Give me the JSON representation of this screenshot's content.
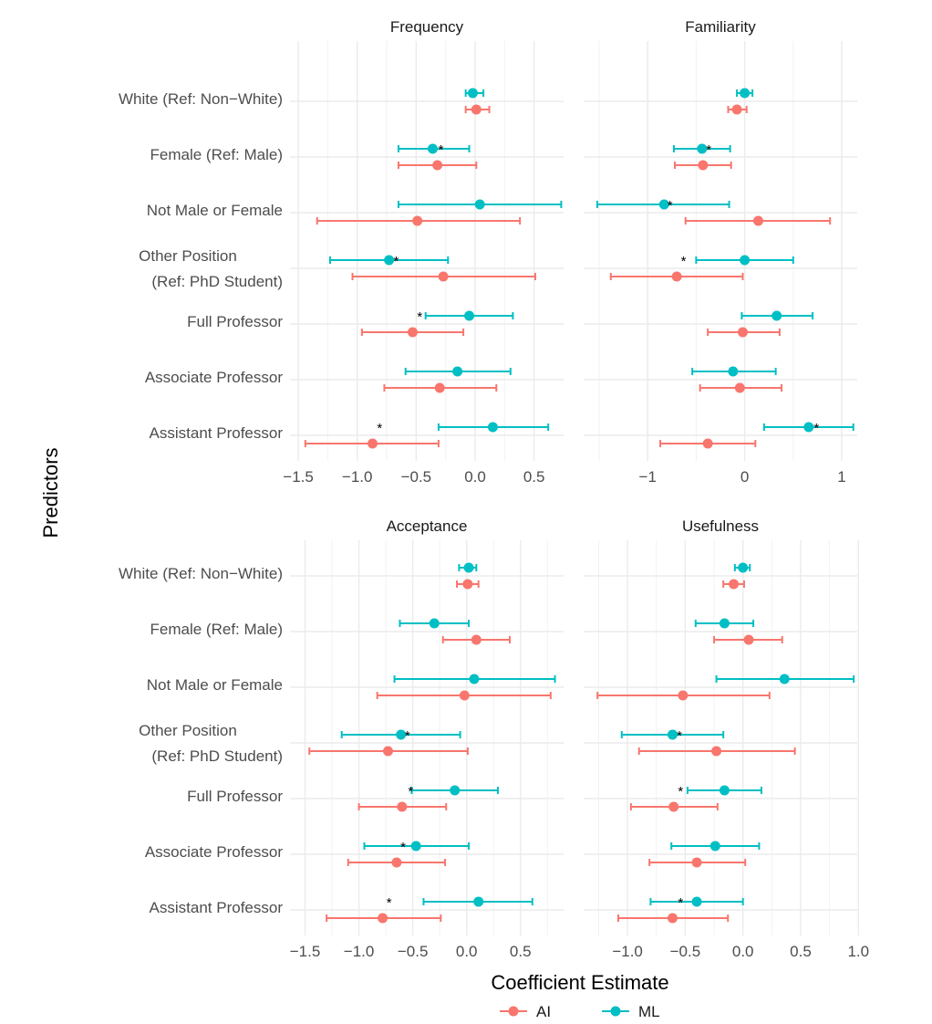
{
  "chart_data": {
    "type": "forest-plot",
    "xlabel": "Coefficient Estimate",
    "ylabel": "Predictors",
    "legend": {
      "position": "bottom",
      "entries": [
        {
          "name": "AI",
          "color": "#F8766D"
        },
        {
          "name": "ML",
          "color": "#00BFC4"
        }
      ]
    },
    "predictors": [
      "White (Ref: Non−White)",
      "Female (Ref: Male)",
      "Not Male or Female",
      [
        "Other Position",
        "(Ref: PhD Student)"
      ],
      "Full Professor",
      "Associate Professor",
      "Assistant Professor"
    ],
    "significance_marker": "*",
    "panels": [
      {
        "title": "Frequency",
        "xlim": [
          -1.57,
          0.75
        ],
        "ticks": [
          -1.5,
          -1.0,
          -0.5,
          0.0,
          0.5
        ],
        "tick_labels": [
          "−1.5",
          "−1.0",
          "−0.5",
          "0.0",
          "0.5"
        ],
        "series": {
          "ML": [
            [
              -0.02,
              -0.08,
              0.07
            ],
            [
              -0.36,
              -0.65,
              -0.05
            ],
            [
              0.04,
              -0.65,
              0.73
            ],
            [
              -0.73,
              -1.23,
              -0.23
            ],
            [
              -0.05,
              -0.42,
              0.32
            ],
            [
              -0.15,
              -0.59,
              0.3
            ],
            [
              0.15,
              -0.31,
              0.62
            ]
          ],
          "AI": [
            [
              0.01,
              -0.08,
              0.12
            ],
            [
              -0.32,
              -0.65,
              0.01
            ],
            [
              -0.49,
              -1.34,
              0.38
            ],
            [
              -0.27,
              -1.04,
              0.51
            ],
            [
              -0.53,
              -0.96,
              -0.1
            ],
            [
              -0.3,
              -0.77,
              0.18
            ],
            [
              -0.87,
              -1.44,
              -0.31
            ]
          ]
        },
        "stars": [
          null,
          -0.29,
          null,
          -0.67,
          -0.47,
          null,
          -0.81
        ]
      },
      {
        "title": "Familiarity",
        "xlim": [
          -1.66,
          1.16
        ],
        "ticks": [
          -1,
          0,
          1
        ],
        "tick_labels": [
          "−1",
          "0",
          "1"
        ],
        "series": {
          "ML": [
            [
              0.0,
              -0.08,
              0.08
            ],
            [
              -0.44,
              -0.73,
              -0.15
            ],
            [
              -0.83,
              -1.52,
              -0.16
            ],
            [
              0.0,
              -0.5,
              0.5
            ],
            [
              0.33,
              -0.03,
              0.7
            ],
            [
              -0.12,
              -0.54,
              0.32
            ],
            [
              0.66,
              0.2,
              1.12
            ]
          ],
          "AI": [
            [
              -0.08,
              -0.17,
              0.02
            ],
            [
              -0.43,
              -0.72,
              -0.14
            ],
            [
              0.14,
              -0.61,
              0.88
            ],
            [
              -0.7,
              -1.38,
              -0.02
            ],
            [
              -0.02,
              -0.38,
              0.36
            ],
            [
              -0.05,
              -0.46,
              0.38
            ],
            [
              -0.38,
              -0.87,
              0.11
            ]
          ]
        },
        "stars": [
          null,
          -0.37,
          -0.77,
          -0.63,
          null,
          null,
          0.74
        ]
      },
      {
        "title": "Acceptance",
        "xlim": [
          -1.64,
          0.9
        ],
        "ticks": [
          -1.5,
          -1.0,
          -0.5,
          0.0,
          0.5
        ],
        "tick_labels": [
          "−1.5",
          "−1.0",
          "−0.5",
          "0.0",
          "0.5"
        ],
        "series": {
          "ML": [
            [
              0.02,
              -0.07,
              0.09
            ],
            [
              -0.3,
              -0.62,
              0.02
            ],
            [
              0.07,
              -0.67,
              0.82
            ],
            [
              -0.61,
              -1.16,
              -0.06
            ],
            [
              -0.11,
              -0.51,
              0.29
            ],
            [
              -0.47,
              -0.95,
              0.02
            ],
            [
              0.11,
              -0.4,
              0.61
            ]
          ],
          "AI": [
            [
              0.01,
              -0.09,
              0.11
            ],
            [
              0.09,
              -0.22,
              0.4
            ],
            [
              -0.02,
              -0.83,
              0.78
            ],
            [
              -0.73,
              -1.46,
              0.01
            ],
            [
              -0.6,
              -1.0,
              -0.19
            ],
            [
              -0.65,
              -1.1,
              -0.2
            ],
            [
              -0.78,
              -1.3,
              -0.24
            ]
          ]
        },
        "stars": [
          null,
          null,
          null,
          -0.55,
          -0.52,
          -0.59,
          -0.72
        ]
      },
      {
        "title": "Usefulness",
        "xlim": [
          -1.38,
          0.99
        ],
        "ticks": [
          -1.0,
          -0.5,
          0.0,
          0.5,
          1.0
        ],
        "tick_labels": [
          "−1.0",
          "−0.5",
          "0.0",
          "0.5",
          "1.0"
        ],
        "series": {
          "ML": [
            [
              0.0,
              -0.07,
              0.06
            ],
            [
              -0.16,
              -0.41,
              0.09
            ],
            [
              0.36,
              -0.23,
              0.96
            ],
            [
              -0.61,
              -1.05,
              -0.17
            ],
            [
              -0.16,
              -0.48,
              0.16
            ],
            [
              -0.24,
              -0.62,
              0.14
            ],
            [
              -0.4,
              -0.8,
              0.0
            ]
          ],
          "AI": [
            [
              -0.08,
              -0.17,
              0.01
            ],
            [
              0.05,
              -0.25,
              0.34
            ],
            [
              -0.52,
              -1.26,
              0.23
            ],
            [
              -0.23,
              -0.9,
              0.45
            ],
            [
              -0.6,
              -0.97,
              -0.22
            ],
            [
              -0.4,
              -0.81,
              0.02
            ],
            [
              -0.61,
              -1.08,
              -0.13
            ]
          ]
        },
        "stars": [
          null,
          null,
          null,
          -0.55,
          -0.54,
          null,
          -0.54
        ]
      }
    ]
  }
}
